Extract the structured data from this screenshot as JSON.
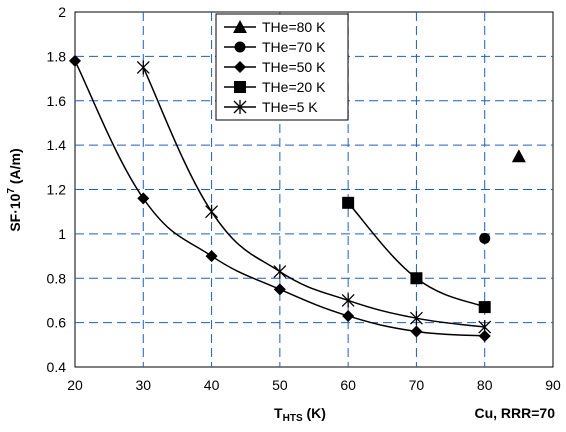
{
  "chart_data": {
    "type": "scatter",
    "xlim": [
      20,
      90
    ],
    "ylim": [
      0.4,
      2
    ],
    "x_ticks": [
      "20",
      "30",
      "40",
      "50",
      "60",
      "70",
      "80",
      "90"
    ],
    "y_ticks": [
      "0.4",
      "0.6",
      "0.8",
      "1",
      "1.2",
      "1.4",
      "1.6",
      "1.8",
      "2"
    ],
    "xlabel_main": "T",
    "xlabel_sub": "HTS",
    "xlabel_unit": " (K)",
    "ylabel_pre": "SF·10",
    "ylabel_sup": "7",
    "ylabel_unit": " (A/m)",
    "annotation": "Cu, RRR=70",
    "grid": true,
    "grid_style": "dashed",
    "grid_color": "#1f5fbf",
    "legend_position": "top-center",
    "series": [
      {
        "name": "THe=80 K",
        "marker": "triangle",
        "line": false,
        "x": [
          85
        ],
        "y": [
          1.35
        ]
      },
      {
        "name": "THe=70 K",
        "marker": "circle",
        "line": false,
        "x": [
          80
        ],
        "y": [
          0.98
        ]
      },
      {
        "name": "THe=50 K",
        "marker": "diamond",
        "line": true,
        "x": [
          20,
          30,
          40,
          50,
          60,
          70,
          80
        ],
        "y": [
          1.78,
          1.16,
          0.9,
          0.75,
          0.63,
          0.56,
          0.54
        ]
      },
      {
        "name": "THe=20 K",
        "marker": "square",
        "line": true,
        "x": [
          60,
          70,
          80
        ],
        "y": [
          1.14,
          0.8,
          0.67
        ]
      },
      {
        "name": "THe=5 K",
        "marker": "asterisk",
        "line": true,
        "x": [
          30,
          40,
          50,
          60,
          70,
          80
        ],
        "y": [
          1.75,
          1.1,
          0.83,
          0.7,
          0.62,
          0.58
        ]
      }
    ]
  }
}
